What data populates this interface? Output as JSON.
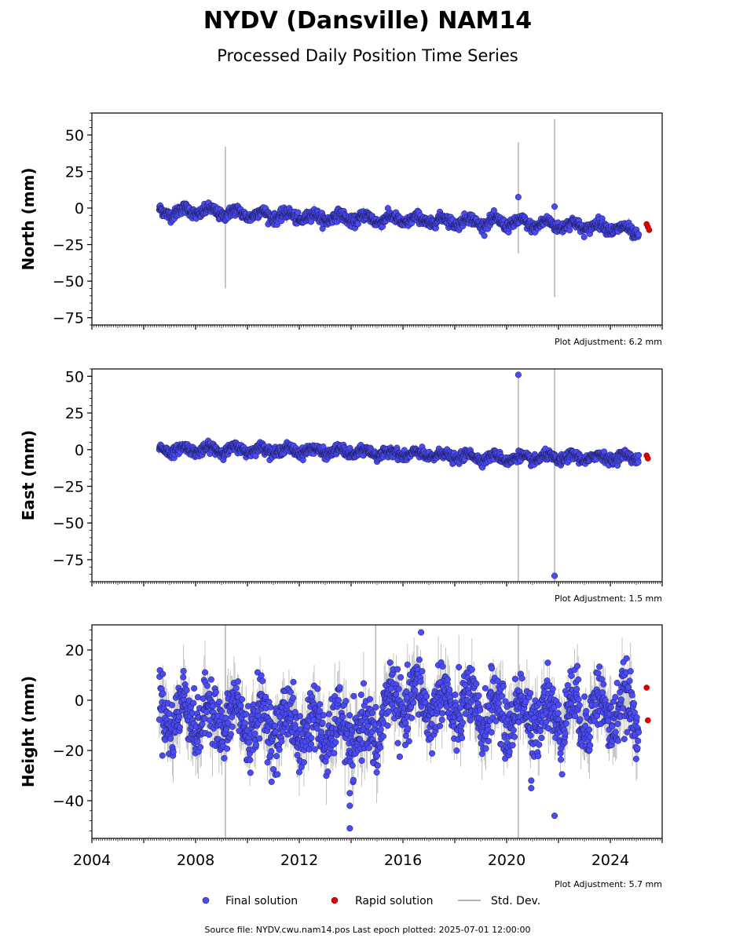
{
  "title": "NYDV (Dansville) NAM14",
  "subtitle": "Processed Daily Position Time Series",
  "legend": {
    "final": "Final solution",
    "rapid": "Rapid solution",
    "stddev": "Std. Dev."
  },
  "footer": "Source file: NYDV.cwu.nam14.pos  Last epoch plotted: 2025-07-01 12:00:00",
  "colors": {
    "final_fill": "#4b4bf5",
    "final_edge": "#1a1a50",
    "rapid_fill": "#e00000",
    "stddev": "#b4b4b4"
  },
  "chart_data": [
    {
      "type": "scatter",
      "ylabel": "North (mm)",
      "xlim": [
        2004,
        2026
      ],
      "ylim": [
        -80,
        65
      ],
      "yticks": [
        50,
        25,
        0,
        -25,
        -50,
        -75
      ],
      "ytick_labels": [
        "50",
        "25",
        "0",
        "−25",
        "−50",
        "−75"
      ],
      "adjustment": "Plot Adjustment: 6.2 mm",
      "final_trend": [
        [
          2006.6,
          -3
        ],
        [
          2008.0,
          -2
        ],
        [
          2012.0,
          -6
        ],
        [
          2016.0,
          -8
        ],
        [
          2020.0,
          -10
        ],
        [
          2024.0,
          -13
        ],
        [
          2025.1,
          -17
        ]
      ],
      "seasonal_amp": 2.5,
      "noise": 1.8,
      "outliers": [
        [
          2020.45,
          7.5
        ],
        [
          2021.85,
          1
        ]
      ],
      "errorbars": [
        [
          2009.15,
          -55,
          42
        ],
        [
          2020.45,
          -31,
          45
        ],
        [
          2021.85,
          -61,
          61
        ]
      ],
      "rapid": [
        [
          2025.4,
          -11
        ],
        [
          2025.45,
          -13
        ],
        [
          2025.5,
          -15
        ]
      ]
    },
    {
      "type": "scatter",
      "ylabel": "East (mm)",
      "xlim": [
        2004,
        2026
      ],
      "ylim": [
        -90,
        55
      ],
      "yticks": [
        50,
        25,
        0,
        -25,
        -50,
        -75
      ],
      "ytick_labels": [
        "50",
        "25",
        "0",
        "−25",
        "−50",
        "−75"
      ],
      "adjustment": "Plot Adjustment: 1.5 mm",
      "final_trend": [
        [
          2006.6,
          0
        ],
        [
          2010.0,
          0
        ],
        [
          2013.0,
          -1
        ],
        [
          2016.0,
          -3
        ],
        [
          2020.0,
          -6
        ],
        [
          2025.1,
          -5
        ]
      ],
      "seasonal_amp": 2,
      "noise": 1.6,
      "outliers": [
        [
          2020.45,
          51
        ],
        [
          2021.85,
          -86
        ]
      ],
      "errorbars": [
        [
          2020.45,
          -90,
          53
        ],
        [
          2021.85,
          -90,
          55
        ]
      ],
      "rapid": [
        [
          2025.4,
          -4
        ],
        [
          2025.45,
          -6
        ]
      ]
    },
    {
      "type": "scatter",
      "ylabel": "Height (mm)",
      "xlim": [
        2004,
        2026
      ],
      "ylim": [
        -55,
        30
      ],
      "yticks": [
        20,
        0,
        -20,
        -40
      ],
      "ytick_labels": [
        "20",
        "0",
        "−20",
        "−40"
      ],
      "xticks": [
        2004,
        2008,
        2012,
        2016,
        2020,
        2024
      ],
      "xtick_labels": [
        "2004",
        "2008",
        "2012",
        "2016",
        "2020",
        "2024"
      ],
      "adjustment": "Plot Adjustment: 5.7 mm",
      "final_trend": [
        [
          2006.6,
          -5
        ],
        [
          2010.0,
          -8
        ],
        [
          2013.0,
          -12
        ],
        [
          2015.0,
          -14
        ],
        [
          2015.2,
          -3
        ],
        [
          2016.5,
          0
        ],
        [
          2020.0,
          -6
        ],
        [
          2025.1,
          -4
        ]
      ],
      "seasonal_amp": 7,
      "noise": 6,
      "outliers": [
        [
          2016.7,
          27
        ],
        [
          2013.95,
          -51
        ],
        [
          2013.95,
          -42
        ],
        [
          2013.95,
          -37
        ],
        [
          2021.85,
          -46
        ],
        [
          2020.95,
          -32
        ],
        [
          2020.95,
          -35
        ]
      ],
      "errorbars": [
        [
          2009.15,
          -55,
          30
        ],
        [
          2020.45,
          -55,
          30
        ],
        [
          2014.95,
          -20,
          30
        ]
      ],
      "rapid": [
        [
          2025.4,
          5
        ],
        [
          2025.45,
          -8
        ]
      ]
    }
  ]
}
